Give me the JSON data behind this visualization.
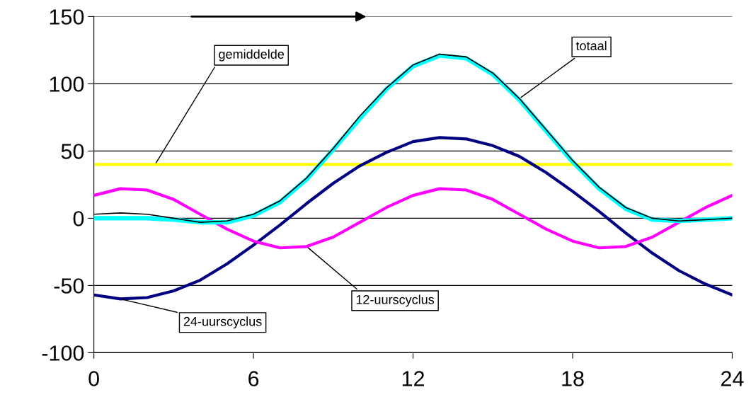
{
  "chart_data": {
    "type": "line",
    "x": [
      0,
      1,
      2,
      3,
      4,
      5,
      6,
      7,
      8,
      9,
      10,
      11,
      12,
      13,
      14,
      15,
      16,
      17,
      18,
      19,
      20,
      21,
      22,
      23,
      24
    ],
    "series": [
      {
        "name": "24-uurscyclus",
        "color": "#000080",
        "values": [
          -57,
          -60,
          -59,
          -54,
          -46,
          -34,
          -20,
          -5,
          11,
          26,
          39,
          49,
          57,
          60,
          59,
          54,
          46,
          34,
          20,
          5,
          -11,
          -26,
          -39,
          -49,
          -57
        ]
      },
      {
        "name": "12-uurscyclus",
        "color": "#ff00ff",
        "values": [
          17,
          22,
          21,
          14,
          3,
          -8,
          -17,
          -22,
          -21,
          -14,
          -3,
          8,
          17,
          22,
          21,
          14,
          3,
          -8,
          -17,
          -22,
          -21,
          -14,
          -3,
          8,
          17
        ]
      },
      {
        "color": "#00ffff",
        "values": [
          0,
          0,
          0,
          -1,
          -3,
          -3,
          2,
          12,
          29,
          51,
          74,
          96,
          113,
          121,
          119,
          107,
          88,
          65,
          42,
          22,
          7,
          -1,
          -2,
          -1,
          0
        ]
      },
      {
        "name": "totaal",
        "color": "#000000",
        "values": [
          3,
          4,
          3,
          0,
          -3,
          -2,
          3,
          13,
          30,
          52,
          76,
          97,
          114,
          122,
          120,
          108,
          89,
          66,
          43,
          23,
          8,
          0,
          -2,
          -1,
          0
        ]
      }
    ],
    "ref_lines": [
      {
        "axis": "y",
        "value": 40,
        "label": "gemiddelde",
        "color": "#ffff00"
      }
    ],
    "xlim": [
      0,
      24
    ],
    "xticks": [
      0,
      6,
      12,
      18,
      24
    ],
    "ylim": [
      -100,
      150
    ],
    "yticks": [
      -100,
      -50,
      0,
      50,
      100,
      150
    ],
    "grid": "y"
  }
}
